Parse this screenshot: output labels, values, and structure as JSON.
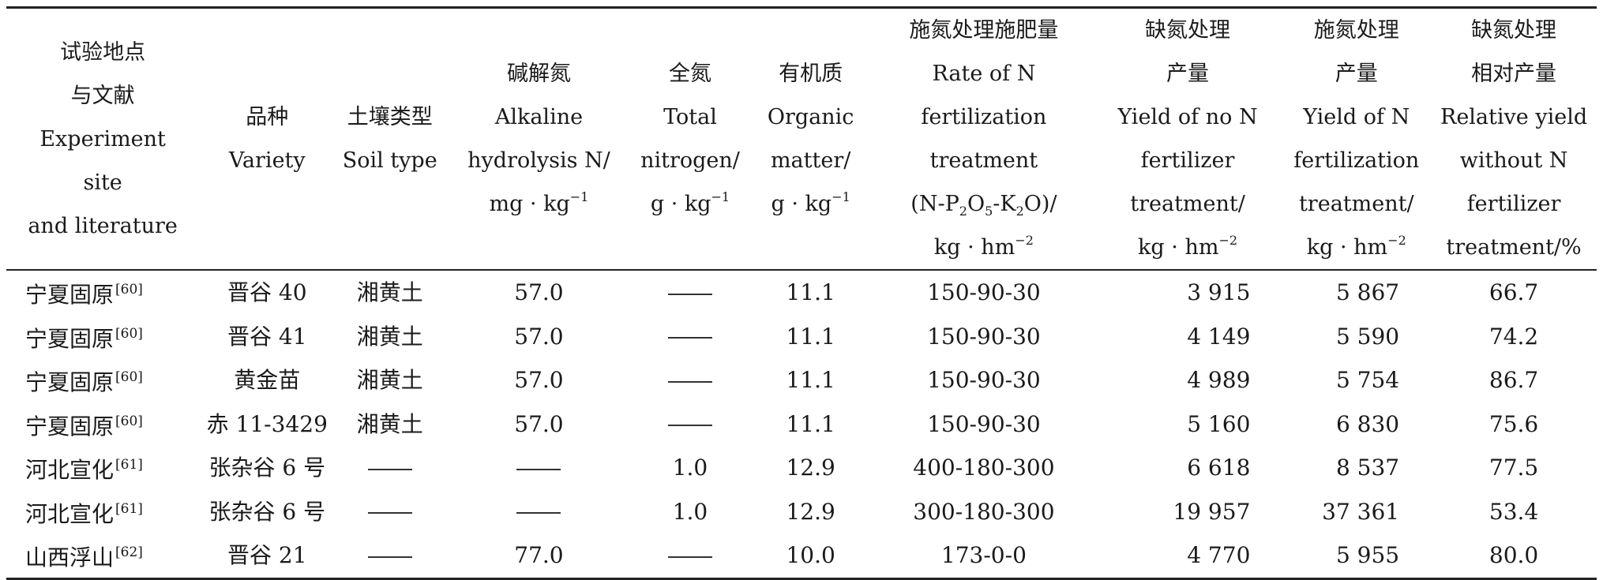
{
  "headers": [
    [
      "试验地点",
      "与文献",
      "Experiment",
      "site",
      "and literature"
    ],
    [
      "品种",
      "Variety"
    ],
    [
      "土壤类型",
      "Soil type"
    ],
    [
      "碱解氮",
      "Alkaline",
      "hydrolysis N/",
      "mg · kg"
    ],
    [
      "全氮",
      "Total",
      "nitrogen/",
      "g · kg"
    ],
    [
      "有机质",
      "Organic",
      "matter/",
      "g · kg"
    ],
    [
      "施氮处理施肥量",
      "Rate of N",
      "fertilization",
      "treatment",
      "(N-P",
      "2",
      "O",
      "5",
      "-K",
      "2",
      "O)/",
      "kg · hm"
    ],
    [
      "缺氮处理",
      "产量",
      "Yield of no N",
      "fertilizer",
      "treatment/",
      "kg · hm"
    ],
    [
      "施氮处理",
      "产量",
      "Yield of N",
      "fertilization",
      "treatment/",
      "kg · hm"
    ],
    [
      "缺氮处理",
      "相对产量",
      "Relative yield",
      "without N",
      "fertilizer",
      "treatment/%"
    ]
  ],
  "exponents": {
    "neg1": "−1",
    "neg2": "−2"
  },
  "rows": [
    {
      "site": "宁夏固原",
      "ref": "[60]",
      "variety": "晋谷 40",
      "soil": "湘黄土",
      "an": "57.0",
      "tn": "——",
      "om": "11.1",
      "rate": "150-90-30",
      "y0": "3 915",
      "y1": "5 867",
      "rel": "66.7"
    },
    {
      "site": "宁夏固原",
      "ref": "[60]",
      "variety": "晋谷 41",
      "soil": "湘黄土",
      "an": "57.0",
      "tn": "——",
      "om": "11.1",
      "rate": "150-90-30",
      "y0": "4 149",
      "y1": "5 590",
      "rel": "74.2"
    },
    {
      "site": "宁夏固原",
      "ref": "[60]",
      "variety": "黄金苗",
      "soil": "湘黄土",
      "an": "57.0",
      "tn": "——",
      "om": "11.1",
      "rate": "150-90-30",
      "y0": "4 989",
      "y1": "5 754",
      "rel": "86.7"
    },
    {
      "site": "宁夏固原",
      "ref": "[60]",
      "variety": "赤 11-3429",
      "soil": "湘黄土",
      "an": "57.0",
      "tn": "——",
      "om": "11.1",
      "rate": "150-90-30",
      "y0": "5 160",
      "y1": "6 830",
      "rel": "75.6"
    },
    {
      "site": "河北宣化",
      "ref": "[61]",
      "variety": "张杂谷 6 号",
      "soil": "——",
      "an": "——",
      "tn": "1.0",
      "om": "12.9",
      "rate": "400-180-300",
      "y0": "6 618",
      "y1": "8 537",
      "rel": "77.5"
    },
    {
      "site": "河北宣化",
      "ref": "[61]",
      "variety": "张杂谷 6 号",
      "soil": "——",
      "an": "——",
      "tn": "1.0",
      "om": "12.9",
      "rate": "300-180-300",
      "y0": "19 957",
      "y1": "37 361",
      "rel": "53.4"
    },
    {
      "site": "山西浮山",
      "ref": "[62]",
      "variety": "晋谷 21",
      "soil": "——",
      "an": "77.0",
      "tn": "——",
      "om": "10.0",
      "rate": "173-0-0",
      "y0": "4 770",
      "y1": "5 955",
      "rel": "80.0"
    }
  ]
}
